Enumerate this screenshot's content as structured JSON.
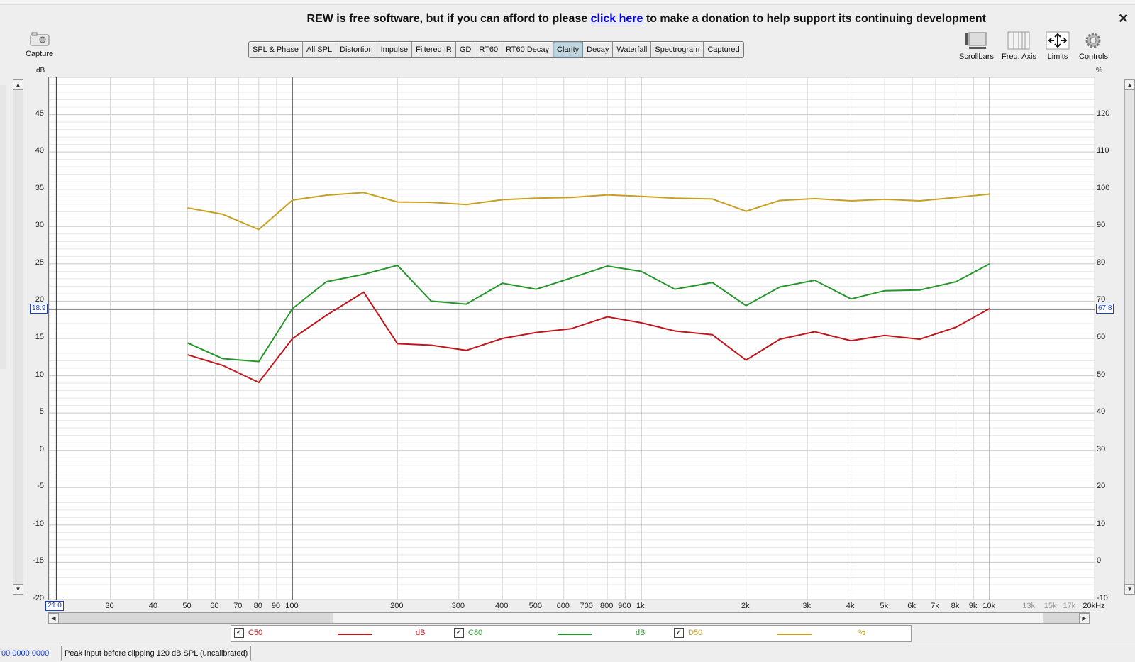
{
  "banner": {
    "prefix": "REW is free software, but if you can afford to please ",
    "link": "click here",
    "suffix": " to make a donation to help support its continuing development",
    "close": "✕"
  },
  "tabs": [
    "SPL & Phase",
    "All SPL",
    "Distortion",
    "Impulse",
    "Filtered IR",
    "GD",
    "RT60",
    "RT60 Decay",
    "Clarity",
    "Decay",
    "Waterfall",
    "Spectrogram",
    "Captured"
  ],
  "active_tab": "Clarity",
  "toolbar": {
    "capture": "Capture",
    "scrollbars": "Scrollbars",
    "freq_axis": "Freq. Axis",
    "limits": "Limits",
    "controls": "Controls"
  },
  "axes": {
    "left_unit": "dB",
    "right_unit": "%"
  },
  "cursor": {
    "left_value": "18.9",
    "right_value": "67.8",
    "x_value": "21.0"
  },
  "legend": {
    "c50": {
      "name": "C50",
      "unit": "dB",
      "color": "#c0161c"
    },
    "c80": {
      "name": "C80",
      "unit": "dB",
      "color": "#24962a"
    },
    "d50": {
      "name": "D50",
      "unit": "%",
      "color": "#c8a020"
    },
    "check": "✓"
  },
  "status": {
    "left": "00  0000 0000",
    "message": "Peak input before clipping 120 dB SPL (uncalibrated)"
  },
  "chart_data": {
    "type": "line",
    "x_scale": "log",
    "xlim": [
      20,
      20000
    ],
    "ylim_left": [
      -20,
      50
    ],
    "ylim_right": [
      -10,
      130
    ],
    "ylabel_left": "dB",
    "ylabel_right": "%",
    "y_ticks_left": [
      -20,
      -15,
      -10,
      -5,
      0,
      5,
      10,
      15,
      20,
      25,
      30,
      35,
      40,
      45
    ],
    "y_ticks_right": [
      -10,
      0,
      10,
      20,
      30,
      40,
      50,
      60,
      70,
      80,
      90,
      100,
      110,
      120
    ],
    "x_ticks": [
      {
        "v": 21,
        "t": "21.0"
      },
      {
        "v": 30,
        "t": "30"
      },
      {
        "v": 40,
        "t": "40"
      },
      {
        "v": 50,
        "t": "50"
      },
      {
        "v": 60,
        "t": "60"
      },
      {
        "v": 70,
        "t": "70"
      },
      {
        "v": 80,
        "t": "80"
      },
      {
        "v": 90,
        "t": "90"
      },
      {
        "v": 100,
        "t": "100"
      },
      {
        "v": 200,
        "t": "200"
      },
      {
        "v": 300,
        "t": "300"
      },
      {
        "v": 400,
        "t": "400"
      },
      {
        "v": 500,
        "t": "500"
      },
      {
        "v": 600,
        "t": "600"
      },
      {
        "v": 700,
        "t": "700"
      },
      {
        "v": 800,
        "t": "800"
      },
      {
        "v": 900,
        "t": "900"
      },
      {
        "v": 1000,
        "t": "1k"
      },
      {
        "v": 2000,
        "t": "2k"
      },
      {
        "v": 3000,
        "t": "3k"
      },
      {
        "v": 4000,
        "t": "4k"
      },
      {
        "v": 5000,
        "t": "5k"
      },
      {
        "v": 6000,
        "t": "6k"
      },
      {
        "v": 7000,
        "t": "7k"
      },
      {
        "v": 8000,
        "t": "8k"
      },
      {
        "v": 9000,
        "t": "9k"
      },
      {
        "v": 10000,
        "t": "10k"
      },
      {
        "v": 13000,
        "t": "13k",
        "minor": true
      },
      {
        "v": 15000,
        "t": "15k",
        "minor": true
      },
      {
        "v": 17000,
        "t": "17k",
        "minor": true
      },
      {
        "v": 20000,
        "t": "20kHz"
      }
    ],
    "x": [
      50,
      63,
      80,
      100,
      125,
      160,
      200,
      250,
      315,
      400,
      500,
      630,
      800,
      1000,
      1250,
      1600,
      2000,
      2500,
      3150,
      4000,
      5000,
      6300,
      8000,
      10000
    ],
    "series": [
      {
        "name": "C50",
        "axis": "left",
        "color": "#c0161c",
        "values": [
          12.8,
          11.4,
          9.1,
          15.0,
          18.1,
          21.2,
          14.3,
          14.1,
          13.4,
          15.0,
          15.8,
          16.3,
          17.9,
          17.1,
          16.0,
          15.5,
          12.1,
          14.9,
          15.9,
          14.7,
          15.4,
          14.9,
          16.5,
          19.0
        ]
      },
      {
        "name": "C80",
        "axis": "left",
        "color": "#24962a",
        "values": [
          14.4,
          12.3,
          11.9,
          19.0,
          22.6,
          23.6,
          24.8,
          20.0,
          19.6,
          22.4,
          21.6,
          23.1,
          24.7,
          24.0,
          21.6,
          22.5,
          19.4,
          21.9,
          22.8,
          20.3,
          21.4,
          21.5,
          22.6,
          25.0
        ]
      },
      {
        "name": "D50",
        "axis": "right",
        "color": "#c8a020",
        "values": [
          95.0,
          93.3,
          89.2,
          97.1,
          98.4,
          99.1,
          96.6,
          96.5,
          95.9,
          97.2,
          97.6,
          97.8,
          98.5,
          98.1,
          97.6,
          97.4,
          94.1,
          97.0,
          97.5,
          96.9,
          97.3,
          96.9,
          97.8,
          98.7
        ]
      }
    ]
  }
}
